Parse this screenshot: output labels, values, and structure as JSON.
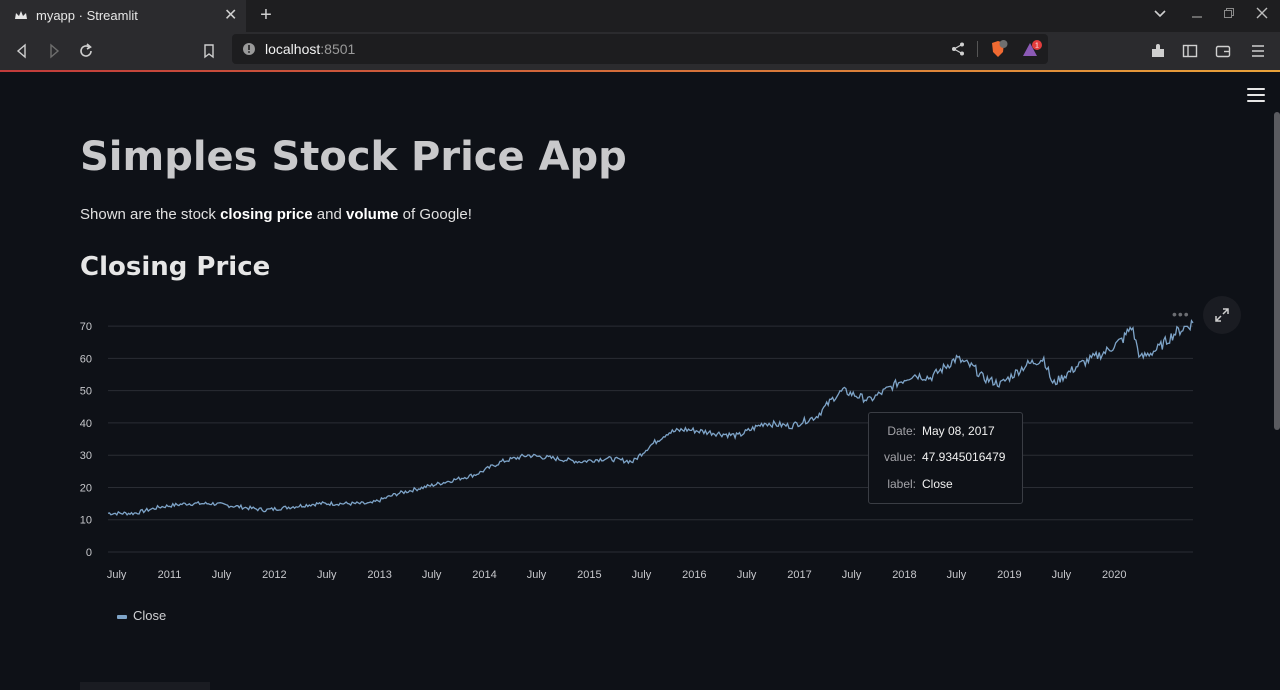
{
  "browser": {
    "tab_title": "myapp · Streamlit",
    "url_host": "localhost",
    "url_port": ":8501",
    "extension_badge": "1"
  },
  "app": {
    "title": "Simples Stock Price App",
    "description_prefix": "Shown are the stock ",
    "description_bold1": "closing price",
    "description_mid": " and ",
    "description_bold2": "volume",
    "description_suffix": " of Google!",
    "section_title": "Closing Price"
  },
  "tooltip": {
    "date_key": "Date:",
    "date_value": "May 08, 2017",
    "value_key": "value:",
    "value_value": "47.9345016479",
    "label_key": "label:",
    "label_value": "Close"
  },
  "chart_data": {
    "type": "line",
    "title": "",
    "xlabel": "",
    "ylabel": "",
    "ylim": [
      0,
      75
    ],
    "y_ticks": [
      0,
      10,
      20,
      30,
      40,
      50,
      60,
      70
    ],
    "x_tick_labels": [
      "July",
      "2011",
      "July",
      "2012",
      "July",
      "2013",
      "July",
      "2014",
      "July",
      "2015",
      "July",
      "2016",
      "July",
      "2017",
      "July",
      "2018",
      "July",
      "2019",
      "July",
      "2020"
    ],
    "x_range": [
      "2010-06-01",
      "2020-10-01"
    ],
    "series": [
      {
        "name": "Close",
        "color": "#7ea4c8",
        "x": [
          "2010-06",
          "2010-09",
          "2010-12",
          "2011-03",
          "2011-06",
          "2011-09",
          "2011-12",
          "2012-03",
          "2012-06",
          "2012-09",
          "2012-12",
          "2013-03",
          "2013-06",
          "2013-09",
          "2013-12",
          "2014-03",
          "2014-06",
          "2014-09",
          "2014-12",
          "2015-03",
          "2015-06",
          "2015-08",
          "2015-10",
          "2015-12",
          "2016-03",
          "2016-06",
          "2016-09",
          "2016-12",
          "2017-03",
          "2017-05",
          "2017-06",
          "2017-09",
          "2017-12",
          "2018-02",
          "2018-04",
          "2018-06",
          "2018-07",
          "2018-09",
          "2018-10",
          "2018-12",
          "2019-03",
          "2019-05",
          "2019-06",
          "2019-09",
          "2019-12",
          "2020-02",
          "2020-03",
          "2020-04",
          "2020-06",
          "2020-08",
          "2020-10"
        ],
        "values": [
          12,
          12,
          14,
          15,
          15,
          14,
          13,
          14,
          15,
          15,
          15,
          18,
          20,
          22,
          24,
          28,
          30,
          29,
          28,
          29,
          28,
          33,
          37,
          38,
          37,
          36,
          40,
          39,
          42,
          47.93,
          50,
          47,
          52,
          55,
          54,
          58,
          60,
          57,
          54,
          52,
          58,
          60,
          52,
          58,
          62,
          66,
          70,
          60,
          63,
          68,
          71
        ]
      }
    ]
  },
  "colors": {
    "background": "#0e1117",
    "line": "#7ea4c8",
    "grid": "#2a2d34",
    "axis_text": "#c7c8cc"
  },
  "icons": {
    "app_menu": "hamburger-icon",
    "expand": "expand-icon",
    "chart_menu": "more-horizontal-icon"
  }
}
